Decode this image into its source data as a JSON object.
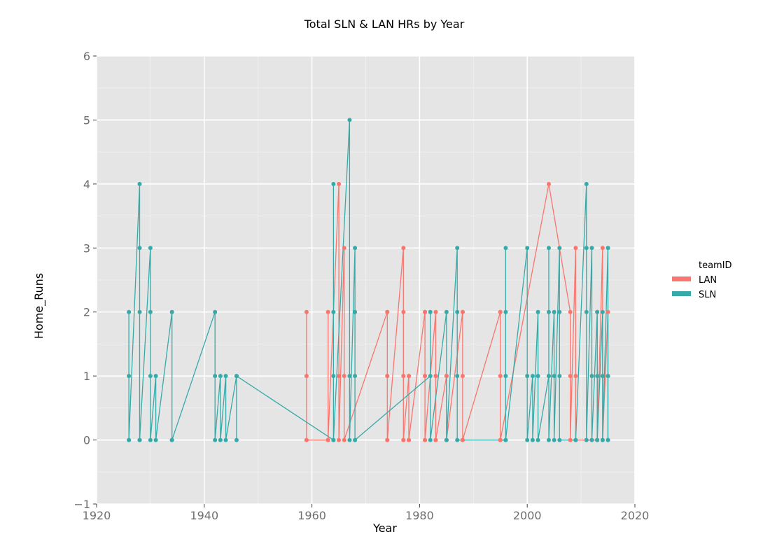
{
  "chart_data": {
    "type": "line",
    "title": "Total SLN & LAN HRs by Year",
    "xlabel": "Year",
    "ylabel": "Home_Runs",
    "xlim": [
      1920,
      2020
    ],
    "ylim": [
      -1,
      6
    ],
    "x_ticks": [
      1920,
      1940,
      1960,
      1980,
      2000,
      2020
    ],
    "y_ticks": [
      -1,
      0,
      1,
      2,
      3,
      4,
      5,
      6
    ],
    "y_tick_labels": [
      "−1",
      "0",
      "1",
      "2",
      "3",
      "4",
      "5",
      "6"
    ],
    "grid": true,
    "markers": true,
    "legend": {
      "title": "teamID",
      "position": "right"
    },
    "series": [
      {
        "name": "LAN",
        "color": "#f8766d",
        "points": [
          [
            1959,
            2
          ],
          [
            1959,
            1
          ],
          [
            1959,
            0
          ],
          [
            1959,
            0
          ],
          [
            1963,
            0
          ],
          [
            1963,
            2
          ],
          [
            1963,
            0
          ],
          [
            1965,
            4
          ],
          [
            1965,
            1
          ],
          [
            1965,
            0
          ],
          [
            1966,
            3
          ],
          [
            1966,
            1
          ],
          [
            1966,
            0
          ],
          [
            1974,
            2
          ],
          [
            1974,
            1
          ],
          [
            1974,
            0
          ],
          [
            1974,
            2
          ],
          [
            1974,
            1
          ],
          [
            1974,
            0
          ],
          [
            1977,
            3
          ],
          [
            1977,
            2
          ],
          [
            1977,
            1
          ],
          [
            1977,
            0
          ],
          [
            1977,
            1
          ],
          [
            1977,
            0
          ],
          [
            1978,
            1
          ],
          [
            1978,
            0
          ],
          [
            1978,
            1
          ],
          [
            1978,
            0
          ],
          [
            1981,
            2
          ],
          [
            1981,
            1
          ],
          [
            1981,
            0
          ],
          [
            1981,
            2
          ],
          [
            1981,
            1
          ],
          [
            1981,
            0
          ],
          [
            1983,
            2
          ],
          [
            1983,
            1
          ],
          [
            1983,
            0
          ],
          [
            1983,
            1
          ],
          [
            1983,
            0
          ],
          [
            1985,
            1
          ],
          [
            1985,
            0
          ],
          [
            1985,
            1
          ],
          [
            1985,
            0
          ],
          [
            1988,
            2
          ],
          [
            1988,
            1
          ],
          [
            1988,
            0
          ],
          [
            1988,
            2
          ],
          [
            1988,
            0
          ],
          [
            1995,
            2
          ],
          [
            1995,
            1
          ],
          [
            1995,
            0
          ],
          [
            1995,
            2
          ],
          [
            1995,
            0
          ],
          [
            2004,
            4
          ],
          [
            2008,
            2
          ],
          [
            2008,
            1
          ],
          [
            2008,
            0
          ],
          [
            2009,
            3
          ],
          [
            2009,
            1
          ],
          [
            2009,
            0
          ],
          [
            2013,
            0
          ],
          [
            2013,
            2
          ],
          [
            2013,
            0
          ],
          [
            2014,
            3
          ],
          [
            2014,
            1
          ],
          [
            2014,
            0
          ],
          [
            2015,
            2
          ],
          [
            2015,
            1
          ],
          [
            2015,
            0
          ]
        ]
      },
      {
        "name": "SLN",
        "color": "#36aaa8",
        "points": [
          [
            1926,
            2
          ],
          [
            1926,
            1
          ],
          [
            1926,
            0
          ],
          [
            1926,
            0
          ],
          [
            1928,
            4
          ],
          [
            1928,
            3
          ],
          [
            1928,
            2
          ],
          [
            1928,
            0
          ],
          [
            1928,
            0
          ],
          [
            1930,
            3
          ],
          [
            1930,
            2
          ],
          [
            1930,
            1
          ],
          [
            1930,
            0
          ],
          [
            1931,
            1
          ],
          [
            1931,
            0
          ],
          [
            1934,
            2
          ],
          [
            1934,
            0
          ],
          [
            1934,
            0
          ],
          [
            1942,
            2
          ],
          [
            1942,
            1
          ],
          [
            1942,
            0
          ],
          [
            1943,
            1
          ],
          [
            1943,
            0
          ],
          [
            1944,
            1
          ],
          [
            1944,
            0
          ],
          [
            1946,
            1
          ],
          [
            1946,
            0
          ],
          [
            1946,
            1
          ],
          [
            1964,
            0
          ],
          [
            1964,
            4
          ],
          [
            1964,
            2
          ],
          [
            1964,
            1
          ],
          [
            1964,
            0
          ],
          [
            1967,
            5
          ],
          [
            1967,
            1
          ],
          [
            1967,
            0
          ],
          [
            1968,
            3
          ],
          [
            1968,
            2
          ],
          [
            1968,
            1
          ],
          [
            1968,
            0
          ],
          [
            1982,
            1
          ],
          [
            1982,
            2
          ],
          [
            1982,
            0
          ],
          [
            1985,
            2
          ],
          [
            1985,
            0
          ],
          [
            1987,
            3
          ],
          [
            1987,
            2
          ],
          [
            1987,
            1
          ],
          [
            1987,
            0
          ],
          [
            1996,
            0
          ],
          [
            1996,
            3
          ],
          [
            1996,
            2
          ],
          [
            1996,
            1
          ],
          [
            1996,
            0
          ],
          [
            2000,
            3
          ],
          [
            2000,
            1
          ],
          [
            2000,
            0
          ],
          [
            2001,
            1
          ],
          [
            2001,
            0
          ],
          [
            2002,
            2
          ],
          [
            2002,
            1
          ],
          [
            2002,
            0
          ],
          [
            2004,
            1
          ],
          [
            2004,
            3
          ],
          [
            2004,
            2
          ],
          [
            2004,
            1
          ],
          [
            2004,
            0
          ],
          [
            2005,
            2
          ],
          [
            2005,
            1
          ],
          [
            2005,
            0
          ],
          [
            2006,
            3
          ],
          [
            2006,
            2
          ],
          [
            2006,
            1
          ],
          [
            2006,
            0
          ],
          [
            2009,
            0
          ],
          [
            2011,
            4
          ],
          [
            2011,
            3
          ],
          [
            2011,
            2
          ],
          [
            2011,
            0
          ],
          [
            2012,
            3
          ],
          [
            2012,
            1
          ],
          [
            2012,
            0
          ],
          [
            2013,
            2
          ],
          [
            2013,
            1
          ],
          [
            2013,
            0
          ],
          [
            2014,
            2
          ],
          [
            2014,
            1
          ],
          [
            2014,
            0
          ],
          [
            2015,
            3
          ],
          [
            2015,
            1
          ],
          [
            2015,
            0
          ]
        ]
      }
    ]
  }
}
